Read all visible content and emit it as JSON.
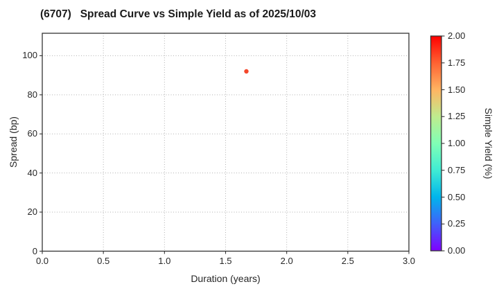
{
  "chart_data": {
    "type": "scatter",
    "title": "(6707)   Spread Curve vs Simple Yield as of 2025/10/03",
    "xlabel": "Duration (years)",
    "ylabel": "Spread (bp)",
    "xlim": [
      0.0,
      3.0
    ],
    "ylim": [
      0.0,
      111.5
    ],
    "x_tick_labels": [
      "0.0",
      "0.5",
      "1.0",
      "1.5",
      "2.0",
      "2.5",
      "3.0"
    ],
    "y_tick_labels": [
      "0",
      "20",
      "40",
      "60",
      "80",
      "100"
    ],
    "grid": {
      "visible": true,
      "style": "dotted",
      "color": "#b0b0b0"
    },
    "points": [
      {
        "x": 1.67,
        "y": 92,
        "simple_yield_pct": 1.8,
        "color": "#f4472b",
        "radius": 3.2
      }
    ],
    "colorbar": {
      "label": "Simple Yield (%)",
      "min": 0.0,
      "max": 2.0,
      "tick_labels": [
        "0.00",
        "0.25",
        "0.50",
        "0.75",
        "1.00",
        "1.25",
        "1.50",
        "1.75",
        "2.00"
      ],
      "colormap": "rainbow",
      "gradient_stops_bottom_to_top": [
        "#8000ff",
        "#4060fa",
        "#00b5ec",
        "#40ecd4",
        "#80ffb5",
        "#bfec8e",
        "#ffb462",
        "#ff6232",
        "#ff0000"
      ]
    },
    "colors": {
      "spine": "#333333",
      "tick_mark": "#333333",
      "text": "#262626",
      "background": "#ffffff"
    },
    "legend": null
  }
}
